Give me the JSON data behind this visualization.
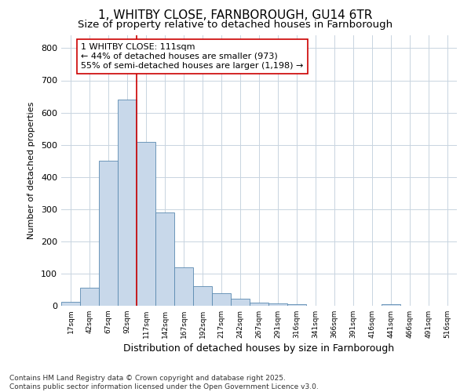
{
  "title_line1": "1, WHITBY CLOSE, FARNBOROUGH, GU14 6TR",
  "title_line2": "Size of property relative to detached houses in Farnborough",
  "xlabel": "Distribution of detached houses by size in Farnborough",
  "ylabel": "Number of detached properties",
  "bin_labels": [
    "17sqm",
    "42sqm",
    "67sqm",
    "92sqm",
    "117sqm",
    "142sqm",
    "167sqm",
    "192sqm",
    "217sqm",
    "242sqm",
    "267sqm",
    "291sqm",
    "316sqm",
    "341sqm",
    "366sqm",
    "391sqm",
    "416sqm",
    "441sqm",
    "466sqm",
    "491sqm",
    "516sqm"
  ],
  "bar_values": [
    12,
    57,
    450,
    640,
    510,
    290,
    120,
    62,
    38,
    22,
    10,
    8,
    5,
    0,
    0,
    0,
    0,
    5,
    0,
    0,
    0
  ],
  "bar_color": "#c8d8ea",
  "bar_edge_color": "#5a8ab0",
  "vline_x_index": 4,
  "vline_color": "#cc0000",
  "annotation_text": "1 WHITBY CLOSE: 111sqm\n← 44% of detached houses are smaller (973)\n55% of semi-detached houses are larger (1,198) →",
  "annotation_box_facecolor": "#ffffff",
  "annotation_box_edgecolor": "#cc0000",
  "ylim": [
    0,
    840
  ],
  "yticks": [
    0,
    100,
    200,
    300,
    400,
    500,
    600,
    700,
    800
  ],
  "footnote": "Contains HM Land Registry data © Crown copyright and database right 2025.\nContains public sector information licensed under the Open Government Licence v3.0.",
  "background_color": "#ffffff",
  "plot_bg_color": "#ffffff",
  "grid_color": "#c8d4e0",
  "title1_fontsize": 11,
  "title2_fontsize": 9.5,
  "xlabel_fontsize": 9,
  "ylabel_fontsize": 8,
  "annot_fontsize": 8,
  "footnote_fontsize": 6.5
}
